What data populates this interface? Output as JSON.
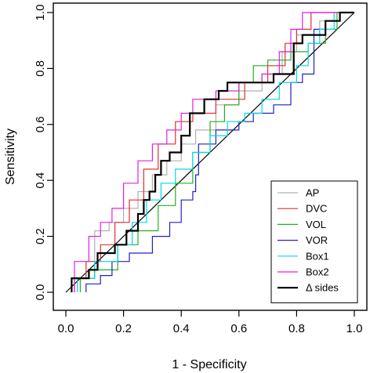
{
  "chart_data": {
    "type": "line",
    "xlabel": "1 - Specificity",
    "ylabel": "Sensitivity",
    "xlim": [
      0,
      1
    ],
    "ylim": [
      0,
      1
    ],
    "xticks": [
      "0.0",
      "0.2",
      "0.4",
      "0.6",
      "0.8",
      "1.0"
    ],
    "yticks": [
      "0.0",
      "0.2",
      "0.4",
      "0.6",
      "0.8",
      "1.0"
    ],
    "grid": false,
    "legend_position": "bottom-right",
    "reference_line": [
      [
        0,
        0
      ],
      [
        1,
        1
      ]
    ],
    "series": [
      {
        "name": "AP",
        "color": "#b0b0b0",
        "width": 1.2,
        "points": [
          [
            0.02,
            0
          ],
          [
            0.02,
            0.05
          ],
          [
            0.1,
            0.05
          ],
          [
            0.1,
            0.22
          ],
          [
            0.15,
            0.22
          ],
          [
            0.15,
            0.25
          ],
          [
            0.2,
            0.25
          ],
          [
            0.2,
            0.3
          ],
          [
            0.25,
            0.3
          ],
          [
            0.25,
            0.36
          ],
          [
            0.3,
            0.36
          ],
          [
            0.3,
            0.42
          ],
          [
            0.35,
            0.42
          ],
          [
            0.35,
            0.47
          ],
          [
            0.4,
            0.47
          ],
          [
            0.4,
            0.53
          ],
          [
            0.45,
            0.53
          ],
          [
            0.45,
            0.58
          ],
          [
            0.52,
            0.58
          ],
          [
            0.52,
            0.67
          ],
          [
            0.6,
            0.67
          ],
          [
            0.6,
            0.72
          ],
          [
            0.68,
            0.72
          ],
          [
            0.68,
            0.78
          ],
          [
            0.75,
            0.78
          ],
          [
            0.75,
            0.86
          ],
          [
            0.8,
            0.86
          ],
          [
            0.8,
            0.92
          ],
          [
            0.88,
            0.92
          ],
          [
            0.88,
            0.97
          ],
          [
            0.95,
            0.97
          ],
          [
            0.95,
            1.0
          ],
          [
            1.0,
            1.0
          ]
        ]
      },
      {
        "name": "DVC",
        "color": "#e03030",
        "width": 1.2,
        "points": [
          [
            0.03,
            0
          ],
          [
            0.03,
            0.05
          ],
          [
            0.07,
            0.05
          ],
          [
            0.07,
            0.11
          ],
          [
            0.12,
            0.11
          ],
          [
            0.12,
            0.17
          ],
          [
            0.17,
            0.17
          ],
          [
            0.17,
            0.25
          ],
          [
            0.22,
            0.25
          ],
          [
            0.22,
            0.33
          ],
          [
            0.27,
            0.33
          ],
          [
            0.27,
            0.44
          ],
          [
            0.32,
            0.44
          ],
          [
            0.32,
            0.53
          ],
          [
            0.38,
            0.53
          ],
          [
            0.38,
            0.61
          ],
          [
            0.44,
            0.61
          ],
          [
            0.44,
            0.64
          ],
          [
            0.52,
            0.64
          ],
          [
            0.52,
            0.69
          ],
          [
            0.62,
            0.69
          ],
          [
            0.62,
            0.75
          ],
          [
            0.7,
            0.75
          ],
          [
            0.7,
            0.81
          ],
          [
            0.76,
            0.81
          ],
          [
            0.76,
            0.89
          ],
          [
            0.8,
            0.89
          ],
          [
            0.8,
            0.94
          ],
          [
            0.85,
            0.94
          ],
          [
            0.85,
            1.0
          ],
          [
            1.0,
            1.0
          ]
        ]
      },
      {
        "name": "VOL",
        "color": "#22b022",
        "width": 1.2,
        "points": [
          [
            0.05,
            0
          ],
          [
            0.05,
            0.05
          ],
          [
            0.1,
            0.05
          ],
          [
            0.1,
            0.08
          ],
          [
            0.18,
            0.08
          ],
          [
            0.18,
            0.17
          ],
          [
            0.25,
            0.17
          ],
          [
            0.25,
            0.22
          ],
          [
            0.32,
            0.22
          ],
          [
            0.32,
            0.31
          ],
          [
            0.38,
            0.31
          ],
          [
            0.38,
            0.39
          ],
          [
            0.44,
            0.39
          ],
          [
            0.44,
            0.5
          ],
          [
            0.5,
            0.5
          ],
          [
            0.5,
            0.61
          ],
          [
            0.55,
            0.61
          ],
          [
            0.55,
            0.67
          ],
          [
            0.6,
            0.67
          ],
          [
            0.6,
            0.75
          ],
          [
            0.65,
            0.75
          ],
          [
            0.65,
            0.81
          ],
          [
            0.7,
            0.81
          ],
          [
            0.7,
            0.83
          ],
          [
            0.78,
            0.83
          ],
          [
            0.78,
            0.86
          ],
          [
            0.84,
            0.86
          ],
          [
            0.84,
            0.89
          ],
          [
            0.9,
            0.89
          ],
          [
            0.9,
            0.94
          ],
          [
            0.94,
            0.94
          ],
          [
            0.94,
            1.0
          ],
          [
            1.0,
            1.0
          ]
        ]
      },
      {
        "name": "VOR",
        "color": "#2020c8",
        "width": 1.2,
        "points": [
          [
            0.07,
            0
          ],
          [
            0.07,
            0.03
          ],
          [
            0.12,
            0.03
          ],
          [
            0.12,
            0.06
          ],
          [
            0.16,
            0.06
          ],
          [
            0.16,
            0.11
          ],
          [
            0.22,
            0.11
          ],
          [
            0.22,
            0.14
          ],
          [
            0.3,
            0.14
          ],
          [
            0.3,
            0.2
          ],
          [
            0.36,
            0.2
          ],
          [
            0.36,
            0.25
          ],
          [
            0.4,
            0.25
          ],
          [
            0.4,
            0.33
          ],
          [
            0.44,
            0.33
          ],
          [
            0.44,
            0.36
          ],
          [
            0.45,
            0.36
          ],
          [
            0.45,
            0.42
          ],
          [
            0.46,
            0.42
          ],
          [
            0.46,
            0.53
          ],
          [
            0.52,
            0.53
          ],
          [
            0.52,
            0.58
          ],
          [
            0.6,
            0.58
          ],
          [
            0.6,
            0.61
          ],
          [
            0.65,
            0.61
          ],
          [
            0.65,
            0.64
          ],
          [
            0.72,
            0.64
          ],
          [
            0.72,
            0.67
          ],
          [
            0.78,
            0.67
          ],
          [
            0.78,
            0.75
          ],
          [
            0.82,
            0.75
          ],
          [
            0.82,
            0.78
          ],
          [
            0.86,
            0.78
          ],
          [
            0.86,
            0.94
          ],
          [
            0.9,
            0.94
          ],
          [
            0.9,
            0.97
          ],
          [
            0.95,
            0.97
          ],
          [
            0.95,
            1.0
          ],
          [
            1.0,
            1.0
          ]
        ]
      },
      {
        "name": "Box1",
        "color": "#00d8e8",
        "width": 1.2,
        "points": [
          [
            0.04,
            0
          ],
          [
            0.04,
            0.05
          ],
          [
            0.1,
            0.05
          ],
          [
            0.1,
            0.11
          ],
          [
            0.18,
            0.11
          ],
          [
            0.18,
            0.17
          ],
          [
            0.23,
            0.17
          ],
          [
            0.23,
            0.25
          ],
          [
            0.28,
            0.25
          ],
          [
            0.28,
            0.33
          ],
          [
            0.33,
            0.33
          ],
          [
            0.33,
            0.39
          ],
          [
            0.38,
            0.39
          ],
          [
            0.38,
            0.44
          ],
          [
            0.44,
            0.44
          ],
          [
            0.44,
            0.5
          ],
          [
            0.5,
            0.5
          ],
          [
            0.5,
            0.56
          ],
          [
            0.56,
            0.56
          ],
          [
            0.56,
            0.61
          ],
          [
            0.62,
            0.61
          ],
          [
            0.62,
            0.64
          ],
          [
            0.68,
            0.64
          ],
          [
            0.68,
            0.69
          ],
          [
            0.74,
            0.69
          ],
          [
            0.74,
            0.75
          ],
          [
            0.8,
            0.75
          ],
          [
            0.8,
            0.81
          ],
          [
            0.84,
            0.81
          ],
          [
            0.84,
            0.89
          ],
          [
            0.88,
            0.89
          ],
          [
            0.88,
            0.94
          ],
          [
            0.93,
            0.94
          ],
          [
            0.93,
            1.0
          ],
          [
            1.0,
            1.0
          ]
        ]
      },
      {
        "name": "Box2",
        "color": "#e020e0",
        "width": 1.2,
        "points": [
          [
            0.03,
            0
          ],
          [
            0.03,
            0.11
          ],
          [
            0.08,
            0.11
          ],
          [
            0.08,
            0.2
          ],
          [
            0.12,
            0.2
          ],
          [
            0.12,
            0.25
          ],
          [
            0.16,
            0.25
          ],
          [
            0.16,
            0.3
          ],
          [
            0.2,
            0.3
          ],
          [
            0.2,
            0.39
          ],
          [
            0.25,
            0.39
          ],
          [
            0.25,
            0.47
          ],
          [
            0.3,
            0.47
          ],
          [
            0.3,
            0.53
          ],
          [
            0.35,
            0.53
          ],
          [
            0.35,
            0.58
          ],
          [
            0.4,
            0.58
          ],
          [
            0.4,
            0.64
          ],
          [
            0.44,
            0.64
          ],
          [
            0.44,
            0.69
          ],
          [
            0.52,
            0.69
          ],
          [
            0.52,
            0.72
          ],
          [
            0.6,
            0.72
          ],
          [
            0.6,
            0.75
          ],
          [
            0.68,
            0.75
          ],
          [
            0.68,
            0.78
          ],
          [
            0.74,
            0.78
          ],
          [
            0.74,
            0.86
          ],
          [
            0.78,
            0.86
          ],
          [
            0.78,
            0.94
          ],
          [
            0.82,
            0.94
          ],
          [
            0.82,
            1.0
          ],
          [
            1.0,
            1.0
          ]
        ]
      },
      {
        "name": "Δ sides",
        "color": "#000000",
        "width": 2.2,
        "points": [
          [
            0.02,
            0
          ],
          [
            0.02,
            0.05
          ],
          [
            0.08,
            0.05
          ],
          [
            0.08,
            0.08
          ],
          [
            0.11,
            0.08
          ],
          [
            0.11,
            0.14
          ],
          [
            0.17,
            0.14
          ],
          [
            0.17,
            0.17
          ],
          [
            0.21,
            0.17
          ],
          [
            0.21,
            0.22
          ],
          [
            0.25,
            0.22
          ],
          [
            0.25,
            0.28
          ],
          [
            0.27,
            0.28
          ],
          [
            0.27,
            0.33
          ],
          [
            0.29,
            0.33
          ],
          [
            0.29,
            0.36
          ],
          [
            0.31,
            0.36
          ],
          [
            0.31,
            0.42
          ],
          [
            0.33,
            0.42
          ],
          [
            0.33,
            0.47
          ],
          [
            0.36,
            0.47
          ],
          [
            0.36,
            0.5
          ],
          [
            0.4,
            0.5
          ],
          [
            0.4,
            0.56
          ],
          [
            0.43,
            0.56
          ],
          [
            0.43,
            0.64
          ],
          [
            0.48,
            0.64
          ],
          [
            0.48,
            0.69
          ],
          [
            0.53,
            0.69
          ],
          [
            0.53,
            0.72
          ],
          [
            0.56,
            0.72
          ],
          [
            0.56,
            0.75
          ],
          [
            0.72,
            0.75
          ],
          [
            0.72,
            0.78
          ],
          [
            0.79,
            0.78
          ],
          [
            0.79,
            0.89
          ],
          [
            0.82,
            0.89
          ],
          [
            0.82,
            0.92
          ],
          [
            0.9,
            0.92
          ],
          [
            0.9,
            0.97
          ],
          [
            0.95,
            0.97
          ],
          [
            0.95,
            1.0
          ],
          [
            1.0,
            1.0
          ]
        ]
      }
    ]
  }
}
